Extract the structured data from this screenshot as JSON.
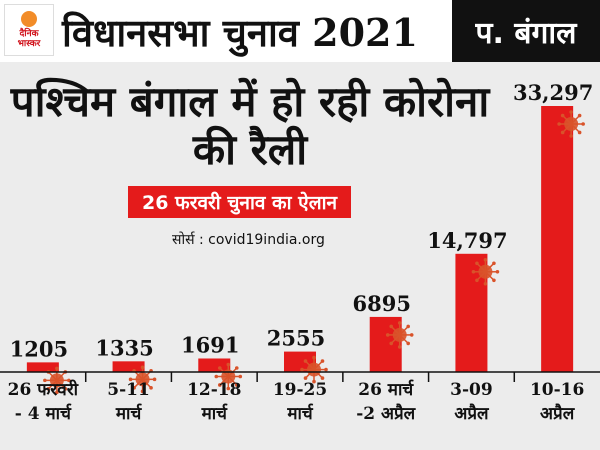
{
  "header": {
    "logo_line1": "दैनिक",
    "logo_line2": "भास्कर",
    "election_title": "विधानसभा चुनाव 2021",
    "state_badge": "प. बंगाल"
  },
  "colors": {
    "bar": "#e41b1b",
    "header_badge": "#111111",
    "accent": "#e41b1b",
    "virus": "#d9532a"
  },
  "chart_data": {
    "type": "bar",
    "title": "पश्चिम बंगाल में हो रही कोरोना की रैली",
    "annotation": "26 फरवरी चुनाव का ऐलान",
    "source": "सोर्स : covid19india.org",
    "categories": [
      "26 फरवरी - 4 मार्च",
      "5-11 मार्च",
      "12-18 मार्च",
      "19-25 मार्च",
      "26 मार्च -2 अप्रैल",
      "3-09 अप्रैल",
      "10-16 अप्रैल"
    ],
    "category_lines": [
      [
        "26 फरवरी",
        "- 4 मार्च"
      ],
      [
        "5-11",
        "मार्च"
      ],
      [
        "12-18",
        "मार्च"
      ],
      [
        "19-25",
        "मार्च"
      ],
      [
        "26 मार्च",
        "-2 अप्रैल"
      ],
      [
        "3-09",
        "अप्रैल"
      ],
      [
        "10-16",
        "अप्रैल"
      ]
    ],
    "values": [
      1205,
      1335,
      1691,
      2555,
      6895,
      14797,
      33297
    ],
    "value_labels": [
      "1205",
      "1335",
      "1691",
      "2555",
      "6895",
      "14,797",
      "33,297"
    ],
    "ylim": [
      0,
      33297
    ],
    "grid": false
  }
}
